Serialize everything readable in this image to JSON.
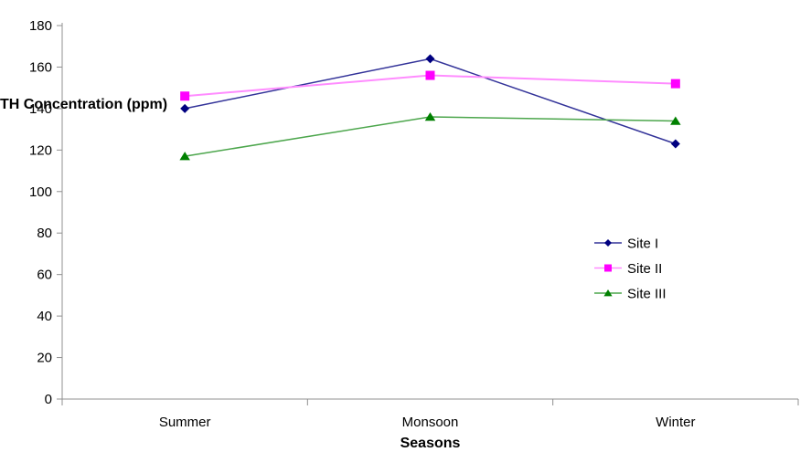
{
  "chart_data": {
    "type": "line",
    "title": "",
    "xlabel": "Seasons",
    "ylabel": "TH Concentration (ppm)",
    "categories": [
      "Summer",
      "Monsoon",
      "Winter"
    ],
    "series": [
      {
        "name": "Site I",
        "marker": "diamond",
        "values": [
          140,
          164,
          123
        ],
        "marker_color": "#000080",
        "line_color": "#333399"
      },
      {
        "name": "Site II",
        "marker": "square",
        "values": [
          146,
          156,
          152
        ],
        "marker_color": "#FF00FF",
        "line_color": "#FF8CFF"
      },
      {
        "name": "Site III",
        "marker": "triangle",
        "values": [
          117,
          136,
          134
        ],
        "marker_color": "#008000",
        "line_color": "#4CA64C"
      }
    ],
    "ylim": [
      0,
      180
    ],
    "ytick_step": 20,
    "ytick_labels": [
      "0",
      "20",
      "40",
      "60",
      "80",
      "100",
      "120",
      "140",
      "160",
      "180"
    ],
    "grid": false,
    "legend": {
      "position": "middle-right",
      "entries": [
        "Site I",
        "Site II",
        "Site III"
      ]
    },
    "axis_color": "#909090",
    "text_color": "#000000",
    "background": "#FFFFFF"
  }
}
